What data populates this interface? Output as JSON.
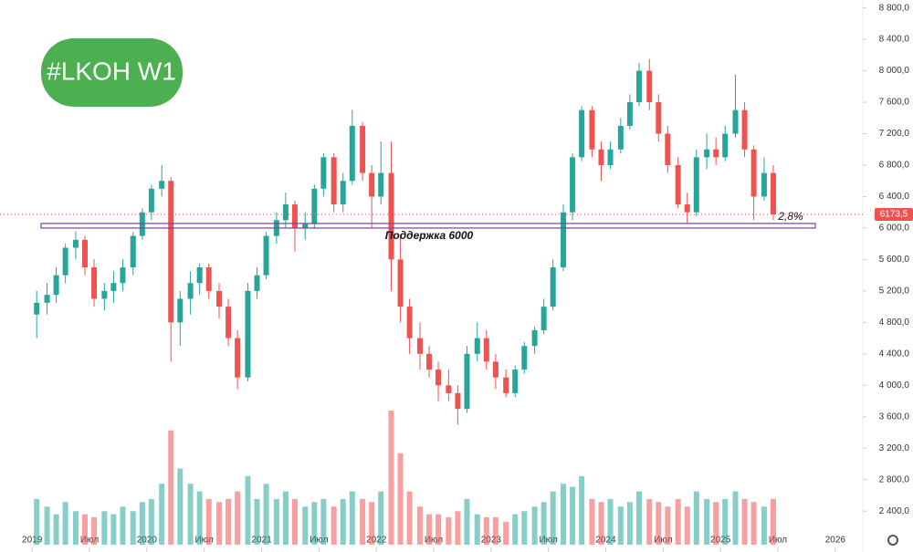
{
  "chart_data": {
    "type": "candlestick",
    "title": "#LKOH W1",
    "x": [
      2019.04,
      2019.13,
      2019.21,
      2019.29,
      2019.38,
      2019.46,
      2019.54,
      2019.63,
      2019.71,
      2019.79,
      2019.88,
      2019.96,
      2020.04,
      2020.13,
      2020.21,
      2020.29,
      2020.38,
      2020.46,
      2020.54,
      2020.63,
      2020.71,
      2020.79,
      2020.88,
      2020.96,
      2021.04,
      2021.13,
      2021.21,
      2021.29,
      2021.38,
      2021.46,
      2021.54,
      2021.63,
      2021.71,
      2021.79,
      2021.88,
      2021.96,
      2022.04,
      2022.13,
      2022.21,
      2022.29,
      2022.38,
      2022.46,
      2022.54,
      2022.63,
      2022.71,
      2022.79,
      2022.88,
      2022.96,
      2023.04,
      2023.13,
      2023.21,
      2023.29,
      2023.38,
      2023.46,
      2023.54,
      2023.63,
      2023.71,
      2023.79,
      2023.88,
      2023.96,
      2024.04,
      2024.13,
      2024.21,
      2024.29,
      2024.38,
      2024.46,
      2024.54,
      2024.63,
      2024.71,
      2024.79,
      2024.88,
      2024.96,
      2025.04,
      2025.13,
      2025.21,
      2025.29,
      2025.38,
      2025.46
    ],
    "open": [
      4900,
      5050,
      5150,
      5400,
      5750,
      5850,
      5500,
      5100,
      5200,
      5300,
      5500,
      5900,
      6200,
      6500,
      6600,
      4800,
      5100,
      5300,
      5500,
      5200,
      5000,
      4600,
      4100,
      5200,
      5400,
      5900,
      6100,
      6300,
      6000,
      6050,
      6500,
      6900,
      6300,
      6600,
      7300,
      6700,
      6400,
      6700,
      5600,
      5000,
      4600,
      4400,
      4200,
      4000,
      3900,
      3700,
      4400,
      4600,
      4300,
      4100,
      3900,
      4200,
      4500,
      4700,
      5000,
      5500,
      6200,
      6900,
      7500,
      7000,
      6800,
      7000,
      7300,
      7600,
      8000,
      7600,
      7200,
      6800,
      6300,
      6200,
      6900,
      7000,
      6900,
      7200,
      7500,
      7000,
      6400,
      6700
    ],
    "high": [
      5200,
      5300,
      5500,
      5800,
      5960,
      5900,
      5600,
      5300,
      5450,
      5600,
      5950,
      6250,
      6550,
      6800,
      6650,
      5200,
      5450,
      5550,
      5550,
      5300,
      5100,
      4700,
      5300,
      5500,
      5950,
      6200,
      6450,
      6350,
      6200,
      6550,
      6950,
      6950,
      6700,
      7500,
      7350,
      6800,
      7100,
      7100,
      5900,
      5100,
      4800,
      4500,
      4300,
      4200,
      4000,
      4500,
      4800,
      4700,
      4400,
      4200,
      4250,
      4550,
      4750,
      5100,
      5600,
      6300,
      6950,
      7550,
      7550,
      7100,
      7100,
      7400,
      7700,
      8100,
      8150,
      7700,
      7300,
      6900,
      6450,
      7000,
      7200,
      7150,
      7300,
      7950,
      7600,
      7050,
      6900,
      6800
    ],
    "low": [
      4600,
      4900,
      5050,
      5300,
      5600,
      5400,
      5000,
      4950,
      5050,
      5200,
      5400,
      5850,
      6100,
      6400,
      4300,
      4500,
      4900,
      5150,
      5100,
      4850,
      4500,
      3950,
      4050,
      5100,
      5350,
      5800,
      6000,
      5700,
      5850,
      6000,
      6400,
      6200,
      6200,
      6550,
      6600,
      6000,
      6300,
      5200,
      4800,
      4400,
      4200,
      4100,
      3800,
      3800,
      3500,
      3650,
      4300,
      4200,
      3950,
      3850,
      3850,
      4150,
      4400,
      4650,
      4950,
      5450,
      6100,
      6850,
      6900,
      6600,
      6750,
      6950,
      7250,
      7550,
      7500,
      7100,
      6700,
      6250,
      6050,
      6150,
      6750,
      6800,
      6850,
      7150,
      6900,
      6100,
      6350,
      6100
    ],
    "close": [
      5050,
      5150,
      5400,
      5750,
      5850,
      5500,
      5100,
      5200,
      5300,
      5500,
      5900,
      6200,
      6500,
      6600,
      4800,
      5100,
      5300,
      5500,
      5200,
      5000,
      4600,
      4100,
      5200,
      5400,
      5900,
      6100,
      6300,
      6000,
      6050,
      6500,
      6900,
      6300,
      6600,
      7300,
      6700,
      6400,
      6700,
      5600,
      5000,
      4600,
      4400,
      4200,
      4000,
      3900,
      3700,
      4400,
      4600,
      4300,
      4100,
      3900,
      4200,
      4500,
      4700,
      5000,
      5500,
      6200,
      6900,
      7500,
      7000,
      6800,
      7000,
      7300,
      7600,
      8000,
      7600,
      7200,
      6800,
      6300,
      6200,
      6900,
      7000,
      6900,
      7200,
      7500,
      7000,
      6400,
      6700,
      6173.5
    ],
    "volume": [
      30,
      25,
      20,
      28,
      22,
      20,
      18,
      22,
      20,
      25,
      22,
      28,
      30,
      40,
      75,
      50,
      40,
      35,
      30,
      28,
      30,
      35,
      45,
      30,
      40,
      30,
      35,
      30,
      25,
      28,
      30,
      25,
      30,
      35,
      30,
      28,
      35,
      88,
      60,
      35,
      25,
      20,
      20,
      18,
      22,
      30,
      20,
      18,
      18,
      15,
      20,
      22,
      25,
      28,
      35,
      40,
      38,
      45,
      30,
      28,
      30,
      25,
      28,
      35,
      30,
      28,
      25,
      30,
      25,
      35,
      30,
      28,
      30,
      35,
      30,
      28,
      25,
      30
    ],
    "up_color": "#26a69a",
    "down_color": "#ef5350",
    "xlim": [
      2018.72,
      2026.24
    ],
    "xticks": [
      2019,
      {
        "value": 2019.5,
        "label": "Июл"
      },
      2020,
      {
        "value": 2020.5,
        "label": "Июл"
      },
      2021,
      {
        "value": 2021.5,
        "label": "Июл"
      },
      2022,
      {
        "value": 2022.5,
        "label": "Июл"
      },
      2023,
      {
        "value": 2023.5,
        "label": "Июл"
      },
      2024,
      {
        "value": 2024.5,
        "label": "Июл"
      },
      2025,
      {
        "value": 2025.5,
        "label": "Июл"
      },
      2026
    ],
    "ylim": [
      1880,
      8900
    ],
    "yticks": [
      {
        "value": 2400,
        "label": "2 400,0"
      },
      {
        "value": 2800,
        "label": "2 800,0"
      },
      {
        "value": 3200,
        "label": "3 200,0"
      },
      {
        "value": 3600,
        "label": "3 600,0"
      },
      {
        "value": 4000,
        "label": "4 000,0"
      },
      {
        "value": 4400,
        "label": "4 400,0"
      },
      {
        "value": 4800,
        "label": "4 800,0"
      },
      {
        "value": 5200,
        "label": "5 200,0"
      },
      {
        "value": 5600,
        "label": "5 600,0"
      },
      {
        "value": 6000,
        "label": "6 000,0"
      },
      {
        "value": 6400,
        "label": "6 400,0"
      },
      {
        "value": 6800,
        "label": "6 800,0"
      },
      {
        "value": 7200,
        "label": "7 200,0"
      },
      {
        "value": 7600,
        "label": "7 600,0"
      },
      {
        "value": 8000,
        "label": "8 000,0"
      },
      {
        "value": 8400,
        "label": "8 400,0"
      },
      {
        "value": 8800,
        "label": "8 800,0"
      }
    ],
    "volume_lim": [
      0,
      100
    ],
    "support": {
      "value": 6000,
      "label": "Поддержка 6000"
    },
    "distance_label": "2,8%",
    "last_price": {
      "value": 6173.5,
      "label": "6173,5"
    }
  }
}
